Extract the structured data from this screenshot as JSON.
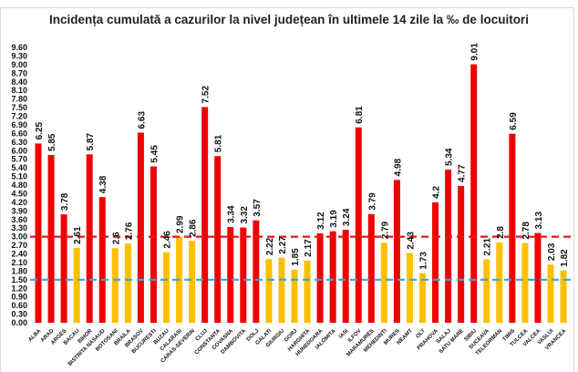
{
  "chart_data": {
    "type": "bar",
    "title": "Incidența cumulată a cazurilor la nivel județean în ultimele 14 zile la ‰ de locuitori",
    "xlabel": "",
    "ylabel": "",
    "ylim": [
      0,
      9.6
    ],
    "ytick_step": 0.3,
    "grid": false,
    "legend": "none",
    "categories": [
      "ALBA",
      "ARAD",
      "ARGES",
      "BACAU",
      "BIHOR",
      "BISTRITA NASAUD",
      "BOTOSANI",
      "BRAILA",
      "BRASOV",
      "BUCURESTI",
      "BUZAU",
      "CALARASI",
      "CARAS-SEVERIN",
      "CLUJ",
      "CONSTANTA",
      "COVASNA",
      "DAMBOVITA",
      "DOLJ",
      "GALATI",
      "GIURGIU",
      "GORJ",
      "HARGHITA",
      "HUNEDOARA",
      "IALOMITA",
      "IASI",
      "ILFOV",
      "MARAMURES",
      "MEHEDINTI",
      "MURES",
      "NEAMT",
      "OLT",
      "PRAHOVA",
      "SALAJ",
      "SATU MARE",
      "SIBIU",
      "SUCEAVA",
      "TELEORMAN",
      "TIMIS",
      "TULCEA",
      "VALCEA",
      "VASLUI",
      "VRANCEA"
    ],
    "values": [
      6.25,
      5.85,
      3.78,
      2.61,
      5.87,
      4.38,
      2.6,
      2.76,
      6.63,
      5.45,
      2.46,
      2.99,
      2.86,
      7.52,
      5.81,
      3.34,
      3.32,
      3.57,
      2.22,
      2.27,
      1.85,
      2.17,
      3.12,
      3.19,
      3.24,
      6.81,
      3.79,
      2.79,
      4.98,
      2.43,
      1.73,
      4.2,
      5.34,
      4.77,
      9.01,
      2.21,
      2.8,
      6.59,
      2.78,
      3.13,
      2.03,
      1.82
    ],
    "data_labels": [
      "6.25",
      "5.85",
      "3.78",
      "2.61",
      "5.87",
      "4.38",
      "2.6",
      "2.76",
      "6.63",
      "5.45",
      "2.46",
      "2.99",
      "2.86",
      "7.52",
      "5.81",
      "3.34",
      "3.32",
      "3.57",
      "2.22",
      "2.27",
      "1.85",
      "2.17",
      "3.12",
      "3.19",
      "3.24",
      "6.81",
      "3.79",
      "2.79",
      "4.98",
      "2.43",
      "1.73",
      "4.2",
      "5.34",
      "4.77",
      "9.01",
      "2.21",
      "2.8",
      "6.59",
      "2.78",
      "3.13",
      "2.03",
      "1.82"
    ],
    "threshold_lines": [
      {
        "value": 3.0,
        "color": "#e8141c",
        "style": "dashed"
      },
      {
        "value": 1.5,
        "color": "#33a8dc",
        "style": "dashed"
      }
    ],
    "colors": {
      "above_threshold": "#f00000",
      "below_threshold": "#ffc000"
    }
  }
}
